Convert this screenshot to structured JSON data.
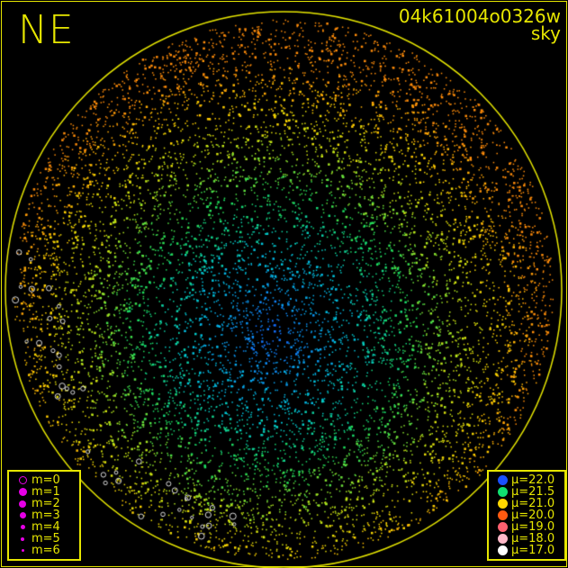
{
  "header": {
    "direction": "NE",
    "frame_id": "04k61004o0326w",
    "mode": "sky"
  },
  "magnitude_legend": {
    "symbol_color": "#e600e6",
    "items": [
      {
        "label": "m=0",
        "style": "ring"
      },
      {
        "label": "m=1"
      },
      {
        "label": "m=2"
      },
      {
        "label": "m=3"
      },
      {
        "label": "m=4"
      },
      {
        "label": "m=5"
      },
      {
        "label": "m=6"
      }
    ]
  },
  "brightness_legend": {
    "items": [
      {
        "label": "μ=22.0",
        "color": "#1a50ff"
      },
      {
        "label": "μ=21.5",
        "color": "#10e070"
      },
      {
        "label": "μ=21.0",
        "color": "#ffd800"
      },
      {
        "label": "μ=20.0",
        "color": "#ff5a10"
      },
      {
        "label": "μ=19.0",
        "color": "#ff6070"
      },
      {
        "label": "μ=18.0",
        "color": "#ffb8c8"
      },
      {
        "label": "μ=17.0",
        "color": "#ffffff"
      }
    ]
  },
  "colors": {
    "frame": "#e6e600",
    "background": "#000000"
  }
}
